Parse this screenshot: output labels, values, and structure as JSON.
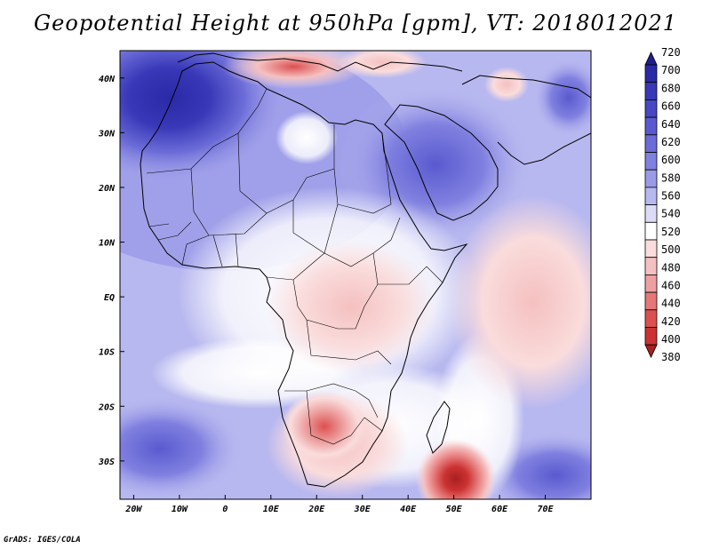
{
  "title": "Geopotential Height at 950hPa [gpm], VT: 2018012021",
  "credit": "GrADS: IGES/COLA",
  "map": {
    "variable": "Geopotential Height",
    "level_hpa": 950,
    "units": "gpm",
    "valid_time": "2018012021",
    "lon_range": [
      -23,
      80
    ],
    "lat_range": [
      -37,
      45
    ],
    "x_ticks": [
      {
        "value": -20,
        "label": "20W"
      },
      {
        "value": -10,
        "label": "10W"
      },
      {
        "value": 0,
        "label": "0"
      },
      {
        "value": 10,
        "label": "10E"
      },
      {
        "value": 20,
        "label": "20E"
      },
      {
        "value": 30,
        "label": "30E"
      },
      {
        "value": 40,
        "label": "40E"
      },
      {
        "value": 50,
        "label": "50E"
      },
      {
        "value": 60,
        "label": "60E"
      },
      {
        "value": 70,
        "label": "70E"
      }
    ],
    "y_ticks": [
      {
        "value": 40,
        "label": "40N"
      },
      {
        "value": 30,
        "label": "30N"
      },
      {
        "value": 20,
        "label": "20N"
      },
      {
        "value": 10,
        "label": "10N"
      },
      {
        "value": 0,
        "label": "EQ"
      },
      {
        "value": -10,
        "label": "10S"
      },
      {
        "value": -20,
        "label": "20S"
      },
      {
        "value": -30,
        "label": "30S"
      }
    ],
    "features": [
      {
        "name": "heat low southern Africa",
        "lon": 22,
        "lat": -23,
        "level": 460
      },
      {
        "name": "deep low off Madagascar",
        "lon": 50,
        "lat": -34,
        "level": 380
      },
      {
        "name": "high over Morocco/Atlantic",
        "lon": -12,
        "lat": 36,
        "level": 680
      },
      {
        "name": "high over Arabia",
        "lon": 43,
        "lat": 27,
        "level": 640
      },
      {
        "name": "Mediterranean low",
        "lon": 14,
        "lat": 44,
        "level": 490
      }
    ]
  },
  "colorbar": {
    "labels": [
      "720",
      "700",
      "680",
      "660",
      "640",
      "620",
      "600",
      "580",
      "560",
      "540",
      "520",
      "500",
      "480",
      "460",
      "440",
      "420",
      "400",
      "380"
    ],
    "colors": [
      "#1e1e8c",
      "#2a2aa6",
      "#3838b8",
      "#4848c4",
      "#5a5ad0",
      "#6c6cd8",
      "#8080e0",
      "#9a9ae8",
      "#b8b8f0",
      "#dcdcf8",
      "#ffffff",
      "#fadcdc",
      "#f5c0c0",
      "#eea0a0",
      "#e67878",
      "#dc5050",
      "#cc3232",
      "#a82020"
    ]
  }
}
